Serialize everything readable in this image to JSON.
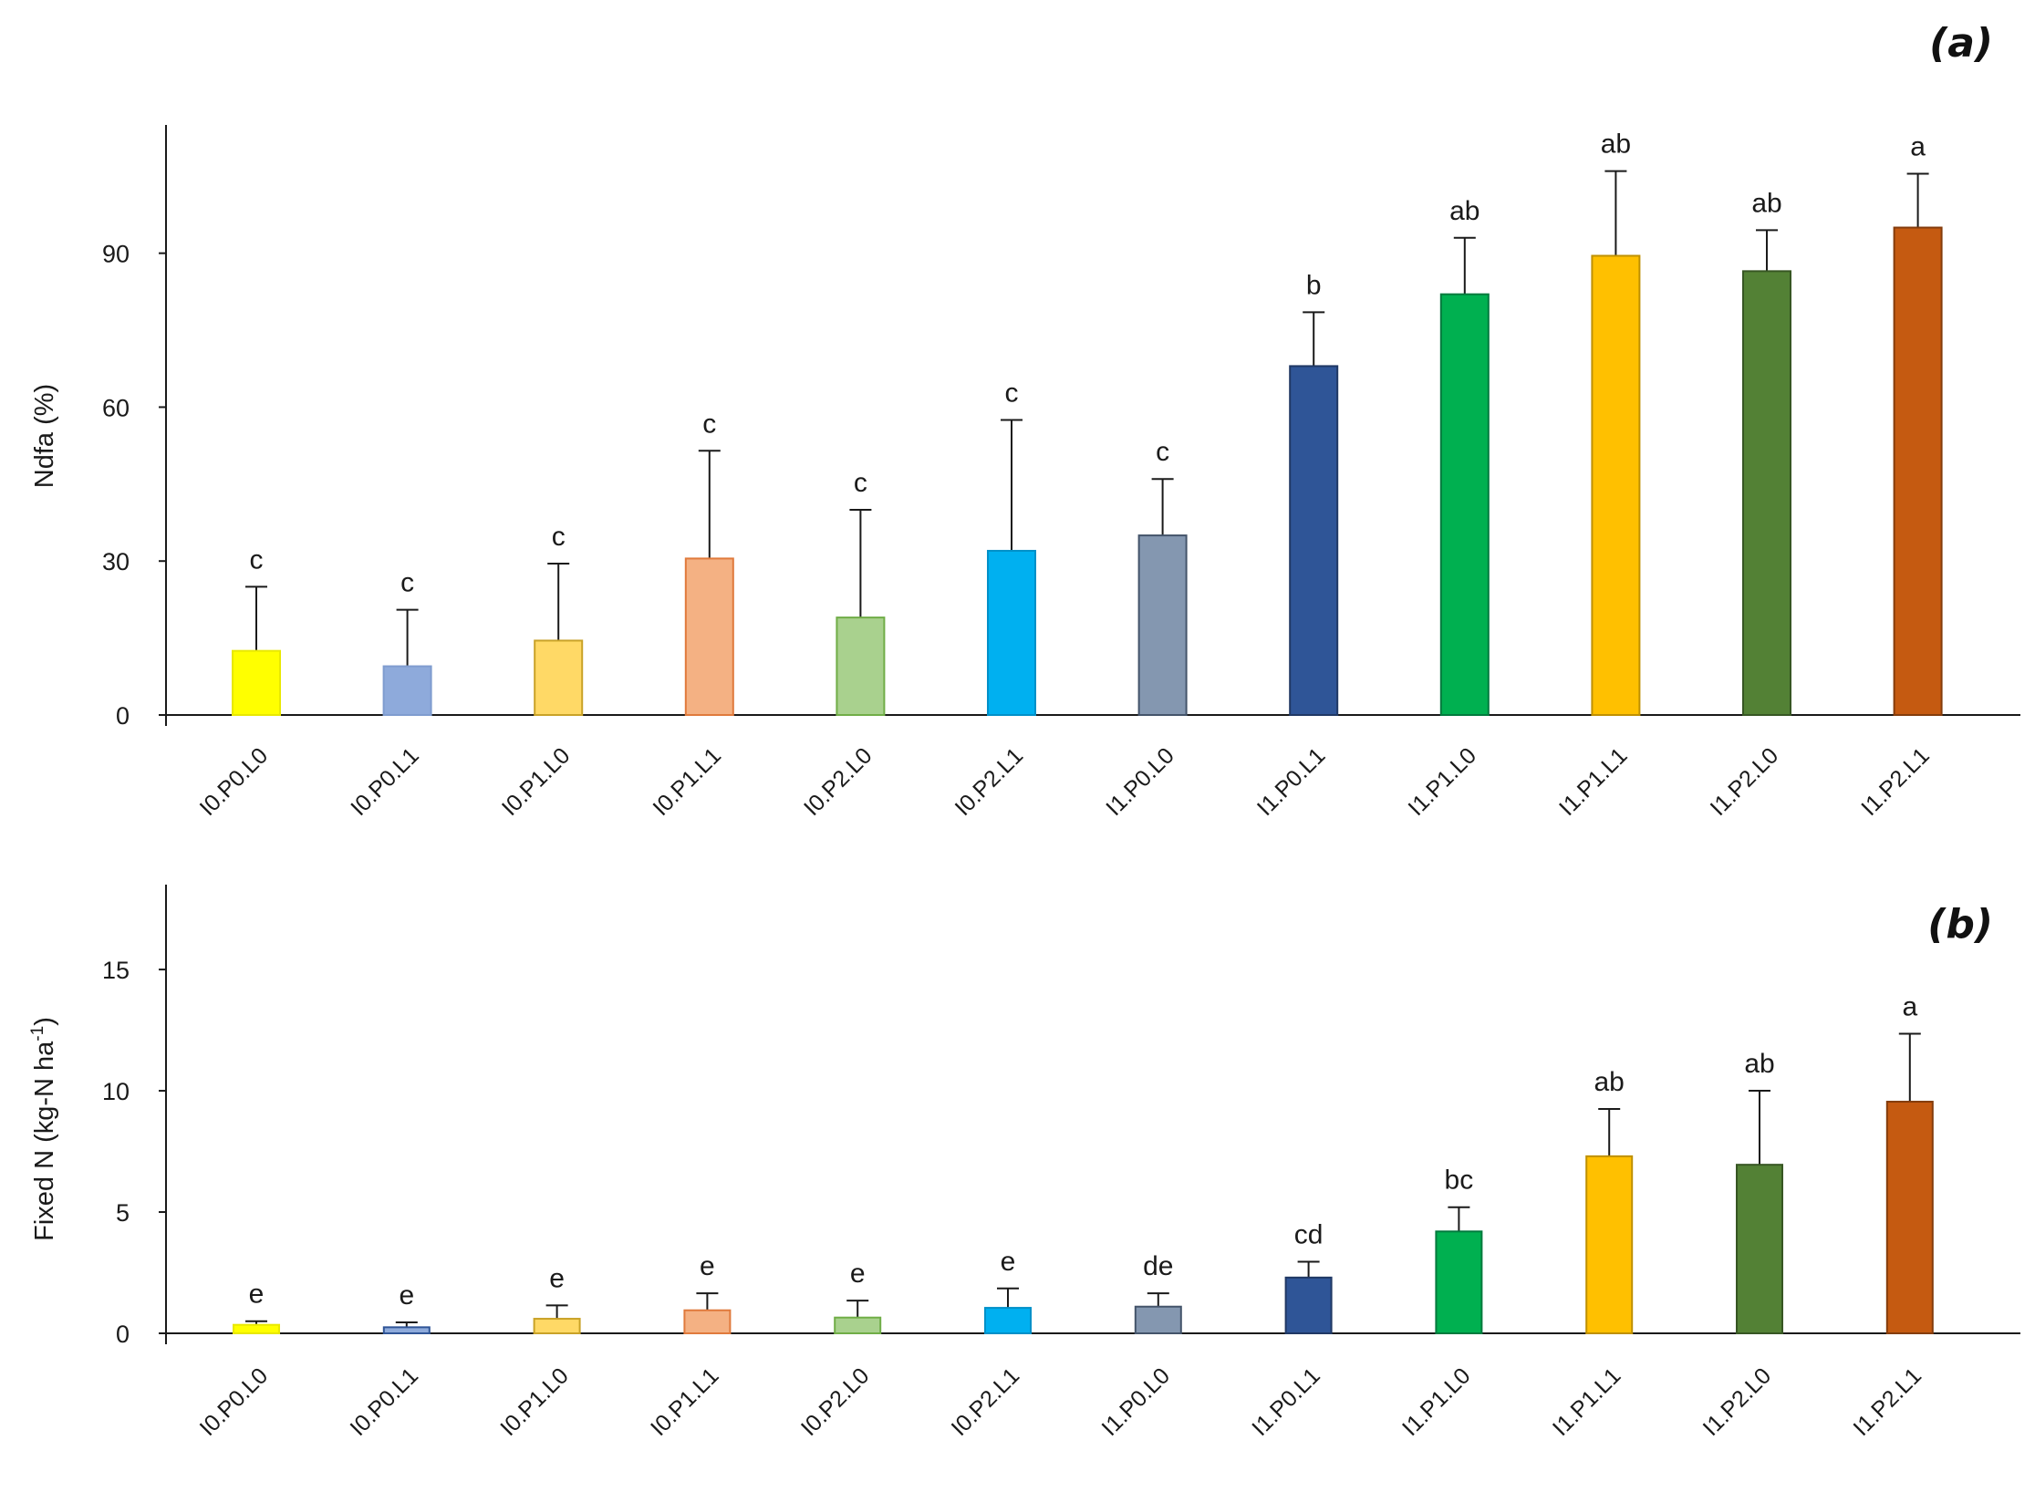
{
  "chart_data": [
    {
      "type": "bar",
      "panel_label": "(a)",
      "ylabel": "Ndfa (%)",
      "ylim": [
        0,
        115
      ],
      "yticks": [
        0,
        30,
        60,
        90
      ],
      "categories": [
        "I0.P0.L0",
        "I0.P0.L1",
        "I0.P1.L0",
        "I0.P1.L1",
        "I0.P2.L0",
        "I0.P2.L1",
        "I1.P0.L0",
        "I1.P0.L1",
        "I1.P1.L0",
        "I1.P1.L1",
        "I1.P2.L0",
        "I1.P2.L1"
      ],
      "values": [
        12.5,
        9.5,
        14.5,
        30.5,
        19,
        32,
        35,
        68,
        82,
        89.5,
        86.5,
        95
      ],
      "errors": [
        12.5,
        11,
        15,
        21,
        21,
        25.5,
        11,
        10.5,
        11,
        16.5,
        8,
        10.5
      ],
      "letters": [
        "c",
        "c",
        "c",
        "c",
        "c",
        "c",
        "c",
        "b",
        "ab",
        "ab",
        "ab",
        "a"
      ],
      "colors": [
        "#ffff00",
        "#8eaadb",
        "#ffd966",
        "#f4b183",
        "#a9d18e",
        "#00b0f0",
        "#8497b0",
        "#2f5597",
        "#00b050",
        "#ffc000",
        "#538135",
        "#c55a11"
      ],
      "edge_colors": [
        "#e8e800",
        "#7f9ccf",
        "#c9a227",
        "#e07a3c",
        "#70ad47",
        "#0090c8",
        "#44546a",
        "#203864",
        "#007a3d",
        "#bf9000",
        "#375623",
        "#843c0c"
      ]
    },
    {
      "type": "bar",
      "panel_label": "(b)",
      "ylabel": "Fixed N (kg-N ha",
      "ylabel_sup": "-1",
      "ylabel_end": ")",
      "ylim": [
        0,
        18.5
      ],
      "yticks": [
        0,
        5,
        10,
        15
      ],
      "categories": [
        "I0.P0.L0",
        "I0.P0.L1",
        "I0.P1.L0",
        "I0.P1.L1",
        "I0.P2.L0",
        "I0.P2.L1",
        "I1.P0.L0",
        "I1.P0.L1",
        "I1.P1.L0",
        "I1.P1.L1",
        "I1.P2.L0",
        "I1.P2.L1"
      ],
      "values": [
        0.35,
        0.25,
        0.6,
        0.95,
        0.65,
        1.05,
        1.1,
        2.3,
        4.2,
        7.3,
        6.95,
        9.55
      ],
      "errors": [
        0.15,
        0.2,
        0.55,
        0.7,
        0.7,
        0.8,
        0.55,
        0.65,
        1.0,
        1.95,
        3.05,
        2.8
      ],
      "letters": [
        "e",
        "e",
        "e",
        "e",
        "e",
        "e",
        "de",
        "cd",
        "bc",
        "ab",
        "ab",
        "a"
      ],
      "colors": [
        "#ffff00",
        "#8eaadb",
        "#ffd966",
        "#f4b183",
        "#a9d18e",
        "#00b0f0",
        "#8497b0",
        "#2f5597",
        "#00b050",
        "#ffc000",
        "#538135",
        "#c55a11"
      ],
      "edge_colors": [
        "#e8e800",
        "#2f5597",
        "#c9a227",
        "#e07a3c",
        "#70ad47",
        "#0090c8",
        "#44546a",
        "#203864",
        "#007a3d",
        "#bf9000",
        "#375623",
        "#843c0c"
      ]
    }
  ]
}
